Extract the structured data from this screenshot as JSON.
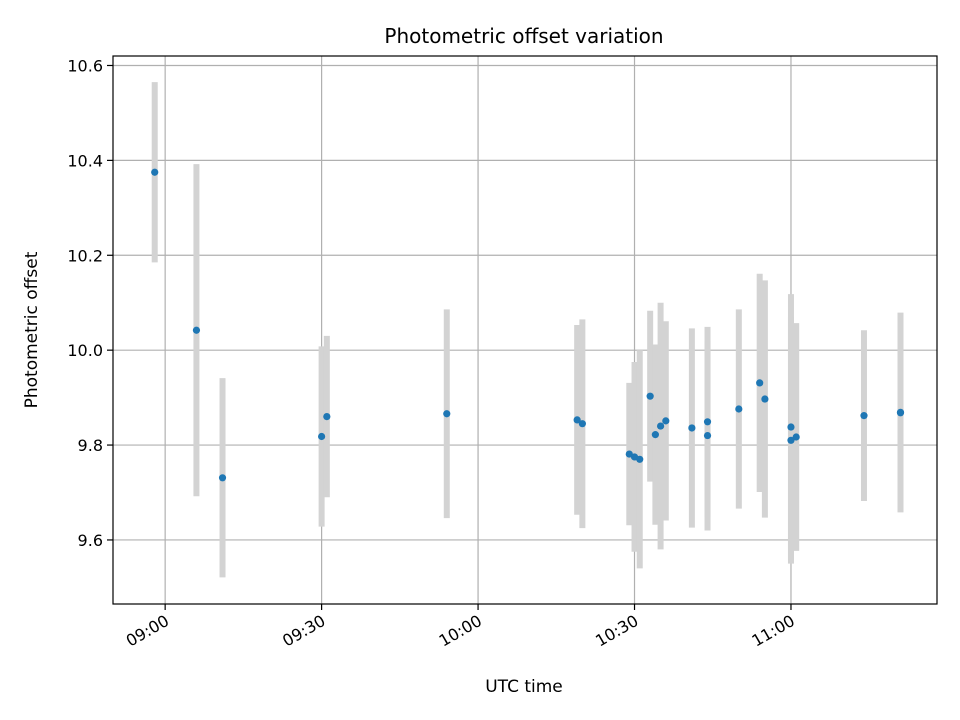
{
  "chart_data": {
    "type": "scatter",
    "title": "Photometric offset variation",
    "xlabel": "UTC time",
    "ylabel": "Photometric offset",
    "x_unit": "time of day (HH:MM)",
    "xlim": [
      "08:50",
      "11:28"
    ],
    "ylim": [
      9.465,
      10.62
    ],
    "x_ticks": [
      "09:00",
      "09:30",
      "10:00",
      "10:30",
      "11:00"
    ],
    "y_ticks": [
      9.6,
      9.8,
      10.0,
      10.2,
      10.4,
      10.6
    ],
    "y_tick_labels": [
      "9.6",
      "9.8",
      "10.0",
      "10.2",
      "10.4",
      "10.6"
    ],
    "grid": true,
    "point_color": "#1f77b4",
    "errorbar_color": "#d3d3d3",
    "points": [
      {
        "x": "08:58",
        "y": 10.375,
        "err": 0.19
      },
      {
        "x": "09:06",
        "y": 10.042,
        "err": 0.35
      },
      {
        "x": "09:11",
        "y": 9.731,
        "err": 0.21
      },
      {
        "x": "09:30",
        "y": 9.818,
        "err": 0.19
      },
      {
        "x": "09:31",
        "y": 9.86,
        "err": 0.17
      },
      {
        "x": "09:54",
        "y": 9.866,
        "err": 0.22
      },
      {
        "x": "10:19",
        "y": 9.853,
        "err": 0.2
      },
      {
        "x": "10:20",
        "y": 9.845,
        "err": 0.22
      },
      {
        "x": "10:29",
        "y": 9.781,
        "err": 0.15
      },
      {
        "x": "10:30",
        "y": 9.775,
        "err": 0.2
      },
      {
        "x": "10:31",
        "y": 9.77,
        "err": 0.23
      },
      {
        "x": "10:33",
        "y": 9.903,
        "err": 0.18
      },
      {
        "x": "10:34",
        "y": 9.822,
        "err": 0.19
      },
      {
        "x": "10:35",
        "y": 9.84,
        "err": 0.26
      },
      {
        "x": "10:36",
        "y": 9.851,
        "err": 0.21
      },
      {
        "x": "10:41",
        "y": 9.836,
        "err": 0.21
      },
      {
        "x": "10:44",
        "y": 9.82,
        "err": 0.2
      },
      {
        "x": "10:44",
        "y": 9.849,
        "err": 0.2
      },
      {
        "x": "10:50",
        "y": 9.876,
        "err": 0.21
      },
      {
        "x": "10:54",
        "y": 9.931,
        "err": 0.23
      },
      {
        "x": "10:55",
        "y": 9.897,
        "err": 0.25
      },
      {
        "x": "11:00",
        "y": 9.81,
        "err": 0.26
      },
      {
        "x": "11:00",
        "y": 9.838,
        "err": 0.28
      },
      {
        "x": "11:01",
        "y": 9.817,
        "err": 0.24
      },
      {
        "x": "11:14",
        "y": 9.862,
        "err": 0.18
      },
      {
        "x": "11:21",
        "y": 9.868,
        "err": 0.21
      },
      {
        "x": "11:21",
        "y": 9.869,
        "err": 0.21
      }
    ]
  }
}
